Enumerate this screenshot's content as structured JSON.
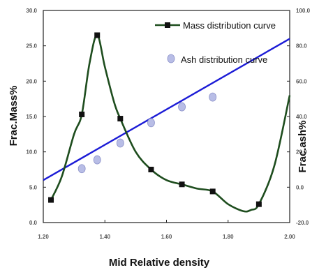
{
  "chart_data": {
    "type": "line",
    "xlabel": "Mid Relative density",
    "ylabel_left": "Frac.Mass%",
    "ylabel_right": "Frac.ash%",
    "xlim": [
      1.2,
      2.0
    ],
    "ylim_left": [
      0,
      30
    ],
    "ylim_right": [
      -20,
      100
    ],
    "x_ticks": [
      "1.20",
      "1.40",
      "1.60",
      "1.80",
      "2.00"
    ],
    "y_left_ticks": [
      "0.0",
      "5.0",
      "10.0",
      "15.0",
      "20.0",
      "25.0",
      "30.0"
    ],
    "y_right_ticks": [
      "-20.0",
      "0.0",
      "20.0",
      "40.0",
      "60.0",
      "80.0",
      "100.0"
    ],
    "grid": false,
    "legend": "top-right",
    "series": [
      {
        "name": "Mass distribution curve",
        "axis": "left",
        "color": "#1e4d1e",
        "marker": "square",
        "x": [
          1.225,
          1.325,
          1.375,
          1.45,
          1.55,
          1.65,
          1.75,
          1.9
        ],
        "y": [
          3.2,
          15.3,
          26.5,
          14.7,
          7.5,
          5.4,
          4.4,
          2.6
        ],
        "curve": {
          "x": [
            1.225,
            1.26,
            1.3,
            1.325,
            1.35,
            1.375,
            1.4,
            1.43,
            1.45,
            1.5,
            1.55,
            1.6,
            1.65,
            1.7,
            1.75,
            1.8,
            1.85,
            1.875,
            1.9,
            1.95,
            2.0
          ],
          "y": [
            3.2,
            6.5,
            12.5,
            15.3,
            22.5,
            26.5,
            22.0,
            17.0,
            14.7,
            10.0,
            7.5,
            6.0,
            5.4,
            4.8,
            4.4,
            2.6,
            1.6,
            1.8,
            2.6,
            8.0,
            18.0
          ]
        }
      },
      {
        "name": "Ash distribution curve",
        "axis": "right",
        "color": "#b8bde6",
        "marker": "circle",
        "x": [
          1.325,
          1.375,
          1.45,
          1.55,
          1.65,
          1.75
        ],
        "y": [
          10.5,
          15.5,
          25.0,
          36.5,
          45.5,
          51.0
        ]
      },
      {
        "name": "",
        "axis": "right",
        "color": "#1b1bd6",
        "marker": "none",
        "x": [
          1.2,
          2.0
        ],
        "y": [
          4.0,
          84.0
        ]
      }
    ]
  }
}
